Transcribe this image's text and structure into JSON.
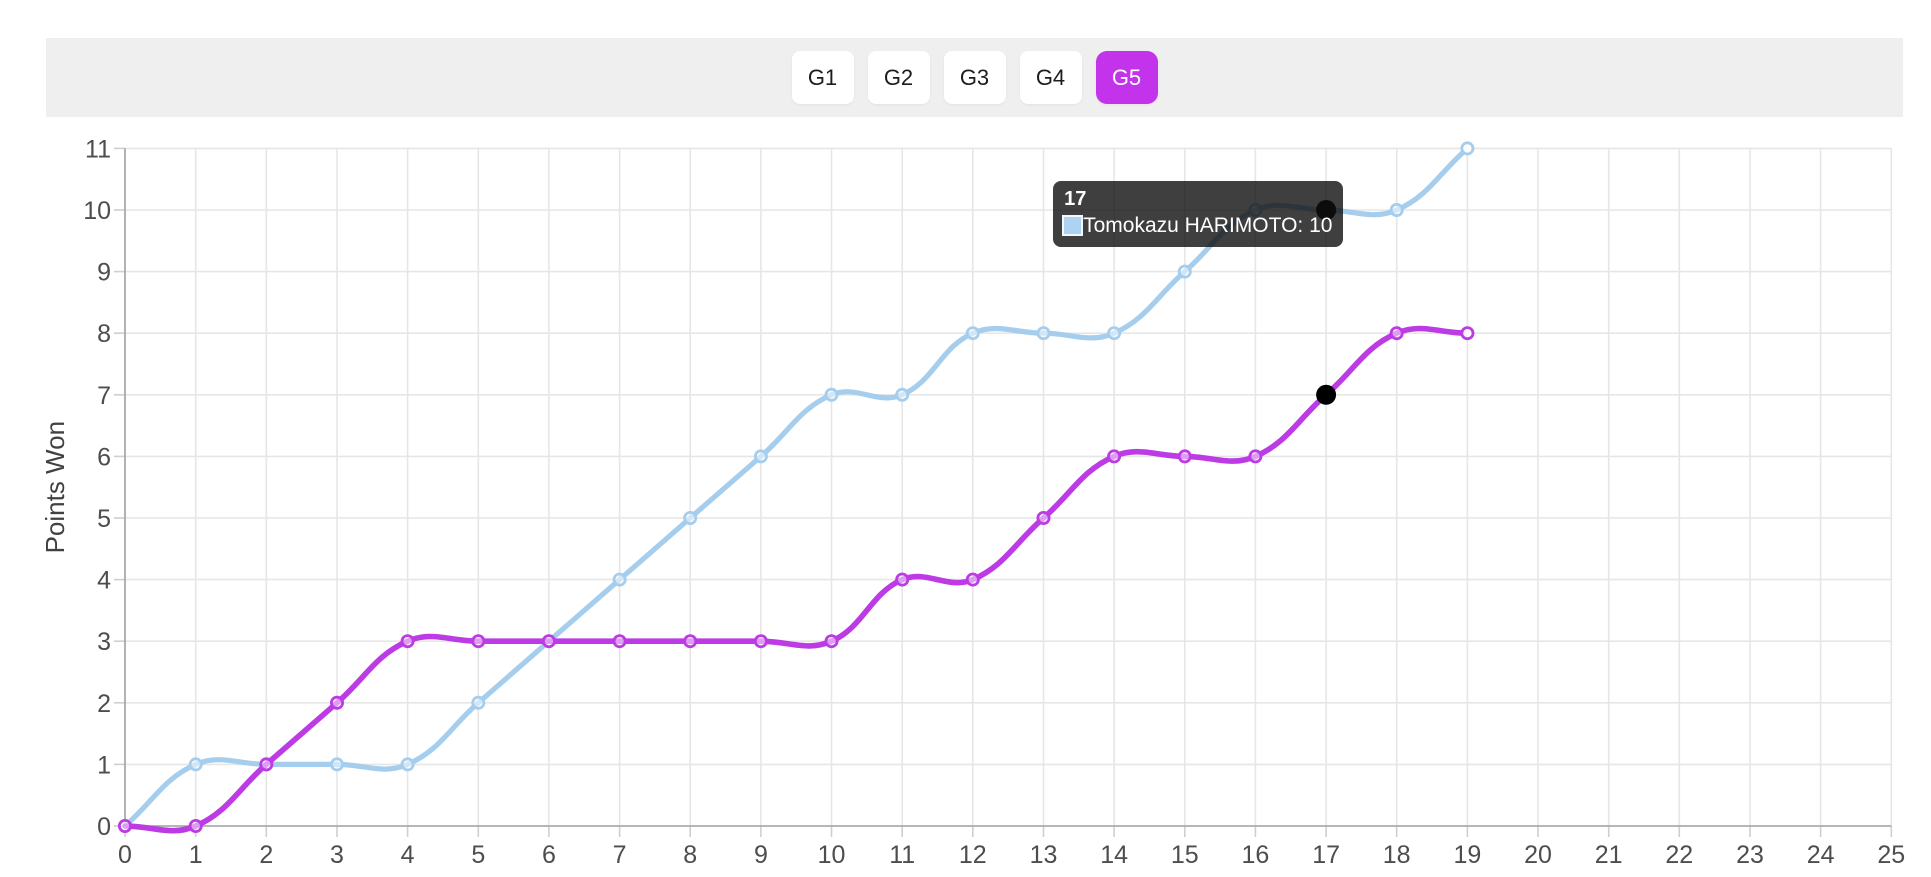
{
  "tab_bar": {
    "bar_bg": "#efefef",
    "active_bg": "#c233eb",
    "active_text": "#ffffff",
    "inactive_bg": "#ffffff",
    "inactive_text": "#1c1c1c",
    "tabs": [
      {
        "label": "G1",
        "active": false
      },
      {
        "label": "G2",
        "active": false
      },
      {
        "label": "G3",
        "active": false
      },
      {
        "label": "G4",
        "active": false
      },
      {
        "label": "G5",
        "active": true
      }
    ]
  },
  "chart_data": {
    "type": "line",
    "title": "",
    "xlabel": "",
    "ylabel": "Points Won",
    "xlim": [
      0,
      25
    ],
    "ylim": [
      0,
      11
    ],
    "x_ticks": [
      0,
      1,
      2,
      3,
      4,
      5,
      6,
      7,
      8,
      9,
      10,
      11,
      12,
      13,
      14,
      15,
      16,
      17,
      18,
      19,
      20,
      21,
      22,
      23,
      24,
      25
    ],
    "y_ticks": [
      0,
      1,
      2,
      3,
      4,
      5,
      6,
      7,
      8,
      9,
      10,
      11
    ],
    "grid": true,
    "legend_position": "none",
    "colors": {
      "grid": "#e6e6e6",
      "tick": "#cfcfcf",
      "axis": "#a2a2a2",
      "tick_label": "#4d4d4d",
      "axis_title": "#414141"
    },
    "series": [
      {
        "name": "Tomokazu HARIMOTO",
        "color": "#a5cded",
        "x": [
          0,
          1,
          2,
          3,
          4,
          5,
          6,
          7,
          8,
          9,
          10,
          11,
          12,
          13,
          14,
          15,
          16,
          17,
          18,
          19
        ],
        "values": [
          0,
          1,
          1,
          1,
          1,
          2,
          3,
          4,
          5,
          6,
          7,
          7,
          8,
          8,
          8,
          9,
          10,
          10,
          10,
          11
        ]
      },
      {
        "name": "",
        "color": "#bc3be4",
        "x": [
          0,
          1,
          2,
          3,
          4,
          5,
          6,
          7,
          8,
          9,
          10,
          11,
          12,
          13,
          14,
          15,
          16,
          17,
          18,
          19
        ],
        "values": [
          0,
          0,
          1,
          2,
          3,
          3,
          3,
          3,
          3,
          3,
          3,
          4,
          4,
          5,
          6,
          6,
          6,
          7,
          8,
          8
        ]
      }
    ],
    "hover": {
      "x": 17,
      "dot_color": "#000000",
      "points": [
        {
          "series": 0,
          "value": 10
        },
        {
          "series": 1,
          "value": 7
        }
      ]
    },
    "tooltip": {
      "title": "17",
      "rows": [
        {
          "swatch": "#aed3f2",
          "label": "Tomokazu HARIMOTO: 10"
        }
      ]
    }
  }
}
